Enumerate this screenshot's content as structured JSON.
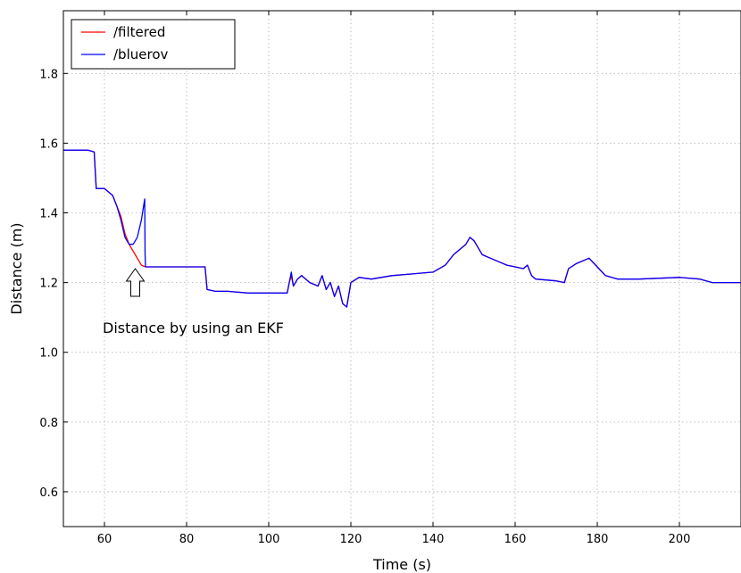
{
  "chart_data": {
    "type": "line",
    "title": "",
    "xlabel": "Time (s)",
    "ylabel": "Distance (m)",
    "xlim": [
      50,
      215
    ],
    "ylim": [
      0.5,
      1.98
    ],
    "xticks": [
      60,
      80,
      100,
      120,
      140,
      160,
      180,
      200
    ],
    "yticks": [
      0.6,
      0.8,
      1.0,
      1.2,
      1.4,
      1.6,
      1.8
    ],
    "grid": true,
    "legend_position": "top-left",
    "series": [
      {
        "name": "/filtered",
        "color": "#ff0000",
        "x": [
          50,
          56,
          57.5,
          58,
          60,
          62,
          63,
          64,
          65,
          66,
          67,
          68,
          69,
          70,
          75,
          80,
          84.5,
          85,
          87,
          90,
          95,
          100,
          104.5,
          105,
          105.5,
          106,
          107,
          108,
          110,
          112,
          113,
          114,
          115,
          116,
          117,
          118,
          119,
          120,
          122,
          125,
          130,
          135,
          140,
          143,
          145,
          147,
          148,
          149,
          150,
          151,
          152,
          154,
          156,
          158,
          160,
          162,
          163,
          164,
          165,
          170,
          172,
          173,
          175,
          178,
          180,
          182,
          185,
          190,
          200,
          205,
          208,
          210,
          215
        ],
        "y": [
          1.58,
          1.58,
          1.575,
          1.47,
          1.47,
          1.45,
          1.42,
          1.39,
          1.34,
          1.31,
          1.29,
          1.27,
          1.25,
          1.245,
          1.245,
          1.245,
          1.245,
          1.18,
          1.175,
          1.175,
          1.17,
          1.17,
          1.17,
          1.2,
          1.22,
          1.19,
          1.21,
          1.22,
          1.2,
          1.19,
          1.22,
          1.18,
          1.2,
          1.16,
          1.19,
          1.14,
          1.13,
          1.2,
          1.215,
          1.21,
          1.22,
          1.225,
          1.23,
          1.25,
          1.28,
          1.3,
          1.31,
          1.33,
          1.32,
          1.3,
          1.28,
          1.27,
          1.26,
          1.25,
          1.245,
          1.24,
          1.25,
          1.22,
          1.21,
          1.205,
          1.2,
          1.24,
          1.255,
          1.27,
          1.245,
          1.22,
          1.21,
          1.21,
          1.215,
          1.21,
          1.2,
          1.2,
          1.2
        ]
      },
      {
        "name": "/bluerov",
        "color": "#0000ff",
        "x": [
          50,
          56,
          57.5,
          58,
          60,
          62,
          63,
          64,
          65,
          66,
          67,
          68,
          69,
          69.8,
          69.9,
          70,
          75,
          80,
          84.5,
          85,
          87,
          90,
          95,
          100,
          104.5,
          105,
          105.5,
          106,
          107,
          108,
          110,
          112,
          113,
          114,
          115,
          116,
          117,
          118,
          119,
          120,
          122,
          125,
          130,
          135,
          140,
          143,
          145,
          147,
          148,
          149,
          150,
          151,
          152,
          154,
          156,
          158,
          160,
          162,
          163,
          164,
          165,
          170,
          172,
          173,
          175,
          178,
          180,
          182,
          185,
          190,
          200,
          205,
          208,
          210,
          215
        ],
        "y": [
          1.58,
          1.58,
          1.575,
          1.47,
          1.47,
          1.45,
          1.42,
          1.38,
          1.33,
          1.31,
          1.31,
          1.33,
          1.38,
          1.44,
          1.28,
          1.245,
          1.245,
          1.245,
          1.245,
          1.18,
          1.175,
          1.175,
          1.17,
          1.17,
          1.17,
          1.2,
          1.23,
          1.19,
          1.21,
          1.22,
          1.2,
          1.19,
          1.22,
          1.18,
          1.2,
          1.16,
          1.19,
          1.14,
          1.13,
          1.2,
          1.215,
          1.21,
          1.22,
          1.225,
          1.23,
          1.25,
          1.28,
          1.3,
          1.31,
          1.33,
          1.32,
          1.3,
          1.28,
          1.27,
          1.26,
          1.25,
          1.245,
          1.24,
          1.25,
          1.22,
          1.21,
          1.205,
          1.2,
          1.24,
          1.255,
          1.27,
          1.245,
          1.22,
          1.21,
          1.21,
          1.215,
          1.21,
          1.2,
          1.2,
          1.2
        ]
      }
    ],
    "annotation": {
      "text": "Distance by using an EKF",
      "arrow_x": 67.5,
      "arrow_y": 1.24
    }
  }
}
